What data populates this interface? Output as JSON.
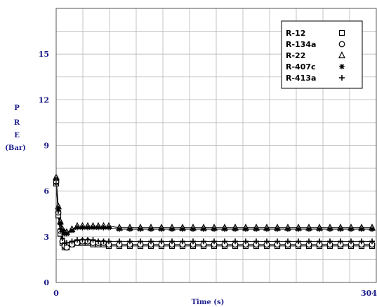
{
  "chart_data": {
    "type": "scatter",
    "xlabel": "Time (s)",
    "ylabel_lines": [
      "P",
      "R",
      "E",
      "(Bar)"
    ],
    "xlim": [
      0,
      304
    ],
    "ylim": [
      0,
      18
    ],
    "x_ticks": [
      {
        "value": 0,
        "label": "0"
      },
      {
        "value": 304,
        "label": "304"
      }
    ],
    "y_ticks": [
      {
        "value": 0,
        "label": "0"
      },
      {
        "value": 3,
        "label": "3"
      },
      {
        "value": 6,
        "label": "6"
      },
      {
        "value": 9,
        "label": "9"
      },
      {
        "value": 12,
        "label": "12"
      },
      {
        "value": 15,
        "label": "15"
      }
    ],
    "grid": true,
    "legend_position": "top-right",
    "series": [
      {
        "name": "R-12",
        "marker": "square",
        "x": [
          0,
          2,
          4,
          6,
          8,
          10,
          15,
          20,
          25,
          30,
          35,
          40,
          45,
          50,
          60,
          70,
          80,
          90,
          100,
          110,
          120,
          130,
          140,
          150,
          160,
          170,
          180,
          190,
          200,
          210,
          220,
          230,
          240,
          250,
          260,
          270,
          280,
          290,
          300
        ],
        "y": [
          6.5,
          4.4,
          3.2,
          2.6,
          2.3,
          2.3,
          2.5,
          2.6,
          2.6,
          2.6,
          2.5,
          2.5,
          2.5,
          2.4,
          2.4,
          2.4,
          2.4,
          2.4,
          2.4,
          2.4,
          2.4,
          2.4,
          2.4,
          2.4,
          2.4,
          2.4,
          2.4,
          2.4,
          2.4,
          2.4,
          2.4,
          2.4,
          2.4,
          2.4,
          2.4,
          2.4,
          2.4,
          2.4,
          2.4
        ]
      },
      {
        "name": "R-134a",
        "marker": "circle",
        "x": [
          0,
          2,
          4,
          6,
          8,
          10,
          15,
          20,
          25,
          30,
          35,
          40,
          45,
          50,
          60,
          70,
          80,
          90,
          100,
          110,
          120,
          130,
          140,
          150,
          160,
          170,
          180,
          190,
          200,
          210,
          220,
          230,
          240,
          250,
          260,
          270,
          280,
          290,
          300
        ],
        "y": [
          6.6,
          4.6,
          3.4,
          2.7,
          2.4,
          2.3,
          2.5,
          2.6,
          2.7,
          2.7,
          2.6,
          2.6,
          2.6,
          2.5,
          2.5,
          2.5,
          2.5,
          2.5,
          2.5,
          2.5,
          2.5,
          2.5,
          2.5,
          2.5,
          2.5,
          2.5,
          2.5,
          2.5,
          2.5,
          2.5,
          2.5,
          2.5,
          2.5,
          2.5,
          2.5,
          2.5,
          2.5,
          2.5,
          2.5
        ]
      },
      {
        "name": "R-22",
        "marker": "triangle",
        "x": [
          0,
          2,
          4,
          6,
          8,
          10,
          15,
          20,
          25,
          30,
          35,
          40,
          45,
          50,
          60,
          70,
          80,
          90,
          100,
          110,
          120,
          130,
          140,
          150,
          160,
          170,
          180,
          190,
          200,
          210,
          220,
          230,
          240,
          250,
          260,
          270,
          280,
          290,
          300
        ],
        "y": [
          6.9,
          5.0,
          4.0,
          3.5,
          3.3,
          3.3,
          3.5,
          3.7,
          3.7,
          3.7,
          3.7,
          3.7,
          3.7,
          3.7,
          3.6,
          3.6,
          3.6,
          3.6,
          3.6,
          3.6,
          3.6,
          3.6,
          3.6,
          3.6,
          3.6,
          3.6,
          3.6,
          3.6,
          3.6,
          3.6,
          3.6,
          3.6,
          3.6,
          3.6,
          3.6,
          3.6,
          3.6,
          3.6,
          3.6
        ]
      },
      {
        "name": "R-407c",
        "marker": "star",
        "x": [
          0,
          2,
          4,
          6,
          8,
          10,
          15,
          20,
          25,
          30,
          35,
          40,
          45,
          50,
          60,
          70,
          80,
          90,
          100,
          110,
          120,
          130,
          140,
          150,
          160,
          170,
          180,
          190,
          200,
          210,
          220,
          230,
          240,
          250,
          260,
          270,
          280,
          290,
          300
        ],
        "y": [
          6.8,
          4.9,
          3.9,
          3.4,
          3.2,
          3.2,
          3.4,
          3.6,
          3.6,
          3.6,
          3.6,
          3.6,
          3.6,
          3.6,
          3.5,
          3.5,
          3.5,
          3.5,
          3.5,
          3.5,
          3.5,
          3.5,
          3.5,
          3.5,
          3.5,
          3.5,
          3.5,
          3.5,
          3.5,
          3.5,
          3.5,
          3.5,
          3.5,
          3.5,
          3.5,
          3.5,
          3.5,
          3.5,
          3.5
        ]
      },
      {
        "name": "R-413a",
        "marker": "plus",
        "x": [
          0,
          2,
          4,
          6,
          8,
          10,
          15,
          20,
          25,
          30,
          35,
          40,
          45,
          50,
          60,
          70,
          80,
          90,
          100,
          110,
          120,
          130,
          140,
          150,
          160,
          170,
          180,
          190,
          200,
          210,
          220,
          230,
          240,
          250,
          260,
          270,
          280,
          290,
          300
        ],
        "y": [
          6.5,
          4.7,
          3.5,
          2.9,
          2.6,
          2.6,
          2.7,
          2.8,
          2.8,
          2.8,
          2.8,
          2.7,
          2.7,
          2.7,
          2.7,
          2.7,
          2.7,
          2.7,
          2.7,
          2.7,
          2.7,
          2.7,
          2.7,
          2.7,
          2.7,
          2.7,
          2.7,
          2.7,
          2.7,
          2.7,
          2.7,
          2.7,
          2.7,
          2.7,
          2.7,
          2.7,
          2.7,
          2.7,
          2.7
        ]
      }
    ]
  }
}
